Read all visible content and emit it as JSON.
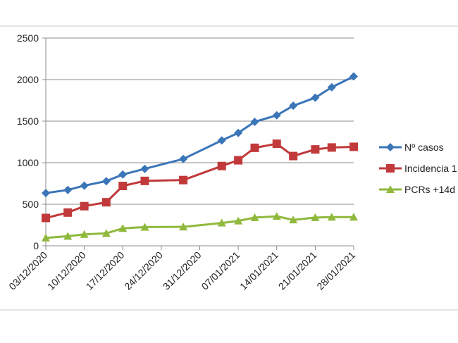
{
  "chart_data": {
    "type": "line",
    "title": "",
    "xlabel": "",
    "ylabel": "",
    "x_start": "2020-12-03",
    "x_end": "2021-01-28",
    "x_ticks": [
      "03/12/2020",
      "10/12/2020",
      "17/12/2020",
      "24/12/2020",
      "31/12/2020",
      "07/01/2021",
      "14/01/2021",
      "21/01/2021",
      "28/01/2021"
    ],
    "ylim": [
      0,
      2500
    ],
    "y_ticks": [
      "0",
      "500",
      "1000",
      "1500",
      "2000",
      "2500"
    ],
    "grid": "horizontal",
    "legend_position": "right",
    "series": [
      {
        "name": "Nº casos",
        "color": "#3a75b8",
        "marker": "diamond",
        "points": [
          [
            "2020-12-03",
            635
          ],
          [
            "2020-12-07",
            672
          ],
          [
            "2020-12-10",
            724
          ],
          [
            "2020-12-14",
            778
          ],
          [
            "2020-12-17",
            858
          ],
          [
            "2020-12-21",
            926
          ],
          [
            "2020-12-28",
            1045
          ],
          [
            "2021-01-04",
            1268
          ],
          [
            "2021-01-07",
            1358
          ],
          [
            "2021-01-10",
            1492
          ],
          [
            "2021-01-14",
            1570
          ],
          [
            "2021-01-17",
            1685
          ],
          [
            "2021-01-21",
            1782
          ],
          [
            "2021-01-24",
            1908
          ],
          [
            "2021-01-28",
            2038
          ]
        ]
      },
      {
        "name": "Incidencia 1",
        "color": "#c1393a",
        "marker": "square",
        "points": [
          [
            "2020-12-03",
            335
          ],
          [
            "2020-12-07",
            400
          ],
          [
            "2020-12-10",
            477
          ],
          [
            "2020-12-14",
            524
          ],
          [
            "2020-12-17",
            720
          ],
          [
            "2020-12-21",
            781
          ],
          [
            "2020-12-28",
            791
          ],
          [
            "2021-01-04",
            960
          ],
          [
            "2021-01-07",
            1029
          ],
          [
            "2021-01-10",
            1179
          ],
          [
            "2021-01-14",
            1228
          ],
          [
            "2021-01-17",
            1080
          ],
          [
            "2021-01-21",
            1160
          ],
          [
            "2021-01-24",
            1183
          ],
          [
            "2021-01-28",
            1191
          ]
        ]
      },
      {
        "name": "PCRs +14d",
        "color": "#8fb93c",
        "marker": "triangle",
        "points": [
          [
            "2020-12-03",
            95
          ],
          [
            "2020-12-07",
            115
          ],
          [
            "2020-12-10",
            138
          ],
          [
            "2020-12-14",
            150
          ],
          [
            "2020-12-17",
            210
          ],
          [
            "2020-12-21",
            225
          ],
          [
            "2020-12-28",
            228
          ],
          [
            "2021-01-04",
            275
          ],
          [
            "2021-01-07",
            300
          ],
          [
            "2021-01-10",
            340
          ],
          [
            "2021-01-14",
            355
          ],
          [
            "2021-01-17",
            312
          ],
          [
            "2021-01-21",
            340
          ],
          [
            "2021-01-24",
            345
          ],
          [
            "2021-01-28",
            345
          ]
        ]
      }
    ]
  }
}
